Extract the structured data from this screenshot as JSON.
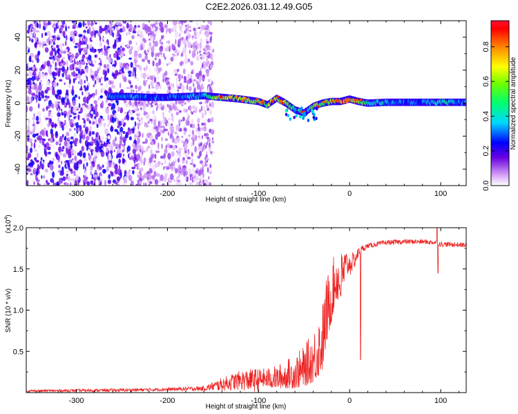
{
  "title": "C2E2.2026.031.12.49.G05",
  "chart_data": [
    {
      "type": "heatmap",
      "name": "spectrogram",
      "xlabel": "Height of straight line (km)",
      "ylabel": "Frequency (Hz)",
      "xlim": [
        -355,
        128
      ],
      "ylim": [
        -50,
        50
      ],
      "xticks": [
        -300,
        -200,
        -100,
        0,
        100
      ],
      "xtick_labels": [
        "-300",
        "-200",
        "-100",
        "0",
        "100"
      ],
      "yticks": [
        -40,
        -20,
        0,
        20,
        40
      ],
      "ytick_labels": [
        "-40",
        "-20",
        "0",
        "20",
        "40"
      ],
      "noise_region_x": [
        -355,
        -160
      ],
      "ridge": {
        "x": [
          -265,
          -240,
          -220,
          -200,
          -180,
          -160,
          -150,
          -140,
          -120,
          -100,
          -90,
          -80,
          -70,
          -60,
          -50,
          -45,
          -40,
          -30,
          -20,
          -10,
          0,
          10,
          20,
          40,
          60,
          80,
          100,
          128
        ],
        "freq": [
          4,
          4,
          3.5,
          3.5,
          4,
          4.5,
          4,
          3.5,
          2.5,
          1,
          -1,
          3,
          0,
          -4,
          -6,
          -4,
          -2,
          0,
          1,
          1,
          2.5,
          1,
          0,
          0.5,
          0.5,
          0.5,
          0.5,
          0.5
        ],
        "amplitude": [
          0.35,
          0.4,
          0.35,
          0.35,
          0.4,
          0.45,
          0.6,
          0.75,
          0.8,
          0.65,
          0.7,
          0.85,
          0.7,
          0.55,
          0.5,
          0.4,
          0.75,
          0.6,
          0.85,
          0.9,
          0.9,
          0.8,
          0.5,
          0.4,
          0.35,
          0.35,
          0.55,
          0.35
        ]
      },
      "colorbar": {
        "label": "Normalized spectral amplitude",
        "ticks": [
          0.0,
          0.2,
          0.4,
          0.6,
          0.8
        ],
        "tick_labels": [
          "0.0",
          "0.2",
          "0.4",
          "0.6",
          "0.8"
        ],
        "range": [
          0.0,
          0.95
        ]
      }
    },
    {
      "type": "line",
      "name": "snr",
      "xlabel": "Height of straight line (km)",
      "ylabel": "SNR (10 * v/v)",
      "scale_label": "(x10",
      "scale_exponent": "4",
      "scale_close": ")",
      "xlim": [
        -355,
        128
      ],
      "ylim": [
        0,
        2.0
      ],
      "xticks": [
        -300,
        -200,
        -100,
        0,
        100
      ],
      "xtick_labels": [
        "-300",
        "-200",
        "-100",
        "0",
        "100"
      ],
      "yticks": [
        0.5,
        1.0,
        1.5,
        2.0
      ],
      "ytick_labels": [
        "0.5",
        "1.0",
        "1.5",
        "2.0"
      ],
      "color": "#ee2222",
      "envelope": {
        "x": [
          -355,
          -250,
          -200,
          -160,
          -140,
          -120,
          -100,
          -80,
          -60,
          -50,
          -40,
          -30,
          -25,
          -20,
          -15,
          -10,
          -5,
          0,
          5,
          10,
          15,
          20,
          30,
          40,
          60,
          80,
          95,
          100,
          128
        ],
        "base": [
          0.02,
          0.03,
          0.04,
          0.05,
          0.1,
          0.15,
          0.15,
          0.15,
          0.2,
          0.25,
          0.35,
          0.55,
          0.9,
          1.1,
          1.35,
          1.3,
          1.5,
          1.55,
          1.6,
          1.7,
          1.75,
          1.78,
          1.8,
          1.82,
          1.83,
          1.83,
          1.82,
          1.8,
          1.79
        ],
        "spread": [
          0.015,
          0.02,
          0.02,
          0.03,
          0.08,
          0.12,
          0.15,
          0.2,
          0.3,
          0.35,
          0.45,
          0.6,
          0.6,
          0.5,
          0.45,
          0.45,
          0.3,
          0.15,
          0.1,
          0.06,
          0.04,
          0.03,
          0.03,
          0.03,
          0.03,
          0.03,
          0.03,
          0.03,
          0.03
        ]
      }
    }
  ]
}
